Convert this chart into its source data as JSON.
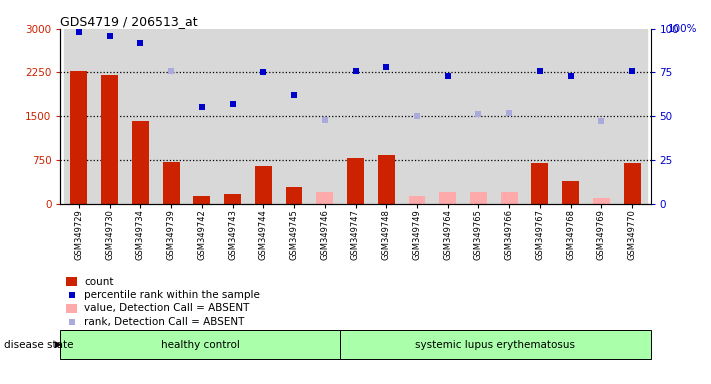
{
  "title": "GDS4719 / 206513_at",
  "samples": [
    "GSM349729",
    "GSM349730",
    "GSM349734",
    "GSM349739",
    "GSM349742",
    "GSM349743",
    "GSM349744",
    "GSM349745",
    "GSM349746",
    "GSM349747",
    "GSM349748",
    "GSM349749",
    "GSM349764",
    "GSM349765",
    "GSM349766",
    "GSM349767",
    "GSM349768",
    "GSM349769",
    "GSM349770"
  ],
  "counts_present": [
    2280,
    2200,
    1420,
    720,
    130,
    170,
    640,
    290,
    null,
    790,
    840,
    null,
    null,
    null,
    null,
    690,
    390,
    null,
    690
  ],
  "counts_absent": [
    null,
    null,
    null,
    null,
    null,
    null,
    null,
    null,
    190,
    null,
    null,
    130,
    200,
    190,
    200,
    null,
    null,
    90,
    null
  ],
  "rank_present": [
    98,
    96,
    92,
    null,
    55,
    57,
    75,
    62,
    null,
    76,
    78,
    null,
    73,
    null,
    null,
    76,
    73,
    null,
    76
  ],
  "rank_absent": [
    null,
    null,
    null,
    76,
    null,
    null,
    null,
    null,
    48,
    null,
    null,
    50,
    null,
    51,
    52,
    null,
    null,
    47,
    null
  ],
  "left_ylim": [
    0,
    3000
  ],
  "right_ylim": [
    0,
    100
  ],
  "left_yticks": [
    0,
    750,
    1500,
    2250,
    3000
  ],
  "right_yticks": [
    0,
    25,
    50,
    75,
    100
  ],
  "dotted_lines": [
    750,
    1500,
    2250
  ],
  "healthy_count": 9,
  "bar_color_present": "#cc2200",
  "bar_color_absent": "#ffaaaa",
  "dot_color_present": "#0000cc",
  "dot_color_absent": "#aaaadd",
  "group_label_healthy": "healthy control",
  "group_label_lupus": "systemic lupus erythematosus",
  "disease_state_label": "disease state",
  "legend_items": [
    "count",
    "percentile rank within the sample",
    "value, Detection Call = ABSENT",
    "rank, Detection Call = ABSENT"
  ],
  "col_bg_color": "#d8d8d8",
  "group_bg_color": "#aaffaa",
  "bg_color": "#ffffff"
}
